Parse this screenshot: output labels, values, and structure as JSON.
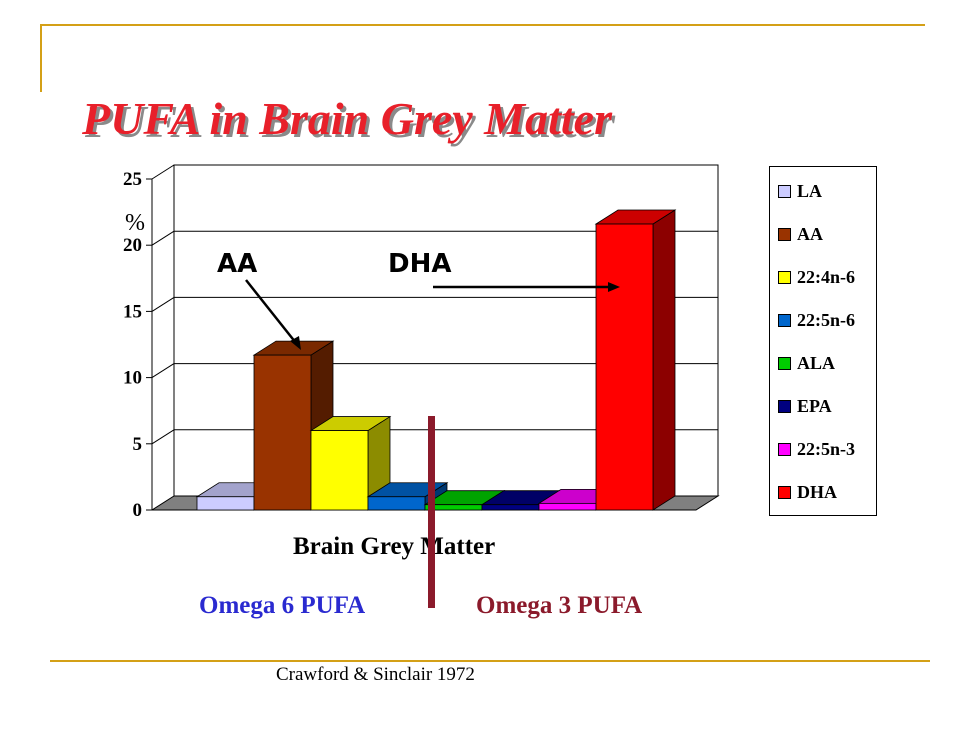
{
  "title": "PUFA in Brain Grey Matter",
  "chart_data": {
    "type": "bar",
    "title": "",
    "xlabel": "Brain Grey Matter",
    "ylabel": "%",
    "ylim": [
      0,
      25
    ],
    "yticks": [
      0,
      5,
      10,
      15,
      20,
      25
    ],
    "categories": [
      "Brain Grey Matter"
    ],
    "series": [
      {
        "name": "LA",
        "values": [
          1
        ],
        "color": "#ccccff"
      },
      {
        "name": "AA",
        "values": [
          11.7
        ],
        "color": "#993300"
      },
      {
        "name": "22:4n-6",
        "values": [
          6
        ],
        "color": "#ffff00"
      },
      {
        "name": "22:5n-6",
        "values": [
          1
        ],
        "color": "#0066cc"
      },
      {
        "name": "ALA",
        "values": [
          0.4
        ],
        "color": "#00cc00"
      },
      {
        "name": "EPA",
        "values": [
          0.4
        ],
        "color": "#000080"
      },
      {
        "name": "22:5n-3",
        "values": [
          0.5
        ],
        "color": "#ff00ff"
      },
      {
        "name": "DHA",
        "values": [
          21.6
        ],
        "color": "#ff0000"
      }
    ],
    "grid": true,
    "legend_position": "right",
    "annotations": [
      "AA",
      "DHA"
    ]
  },
  "groups": {
    "omega6": {
      "label": "Omega 6 PUFA",
      "color": "#2a2ad0"
    },
    "omega3": {
      "label": "Omega 3 PUFA",
      "color": "#8b1a2b"
    }
  },
  "divider_color": "#8b1a2b",
  "source": "Crawford & Sinclair 1972"
}
